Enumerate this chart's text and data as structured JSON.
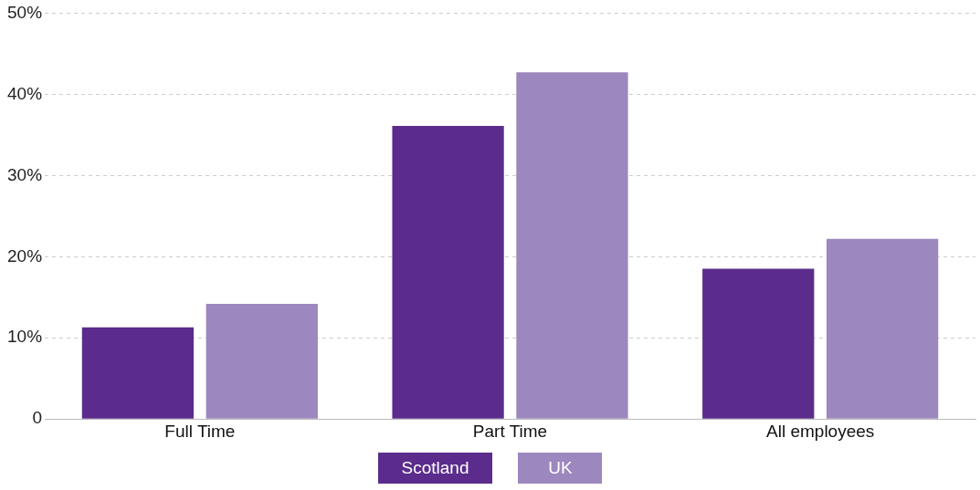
{
  "chart_data": {
    "type": "bar",
    "categories": [
      "Full Time",
      "Part Time",
      "All employees"
    ],
    "series": [
      {
        "name": "Scotland",
        "color": "#5b2c8c",
        "values": [
          11.3,
          36.1,
          18.5
        ]
      },
      {
        "name": "UK",
        "color": "#9c87be",
        "values": [
          14.2,
          42.7,
          22.2
        ]
      }
    ],
    "ylim": [
      0,
      50
    ],
    "yticks": [
      0,
      {
        "value": 10,
        "label": "10%"
      },
      {
        "value": 20,
        "label": "20%"
      },
      {
        "value": 30,
        "label": "30%"
      },
      {
        "value": 40,
        "label": "40%"
      },
      {
        "value": 50,
        "label": "50%"
      }
    ],
    "grid": "y",
    "legend": "bottom"
  }
}
